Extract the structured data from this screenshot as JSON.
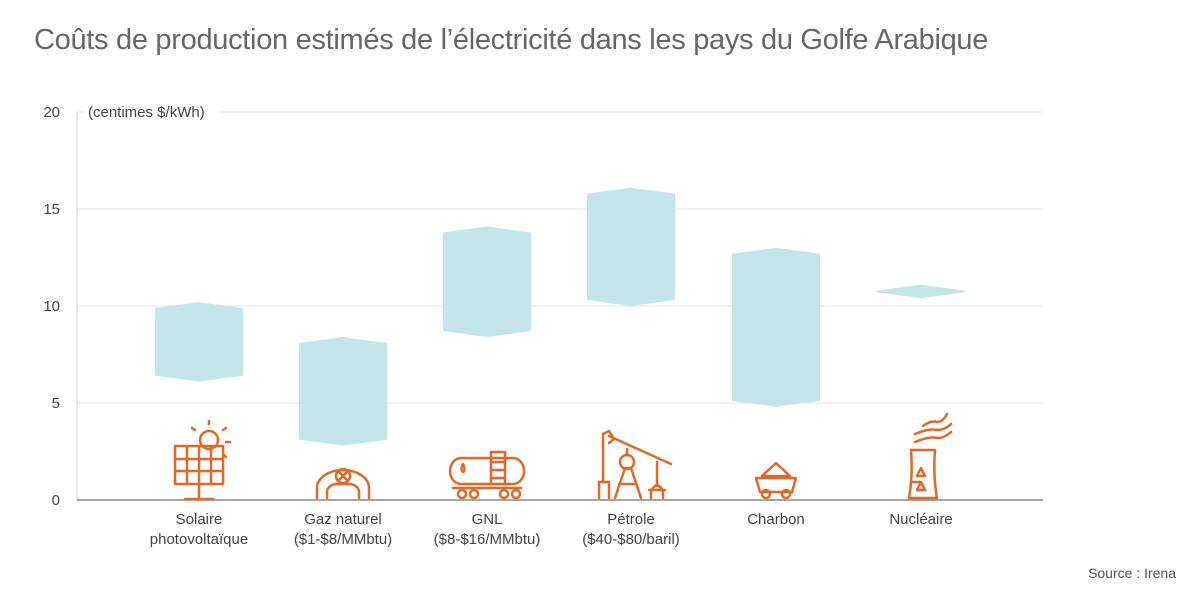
{
  "title": "Coûts de production estimés de l’électricité dans les pays du Golfe Arabique",
  "source": "Source : Irena",
  "colors": {
    "bar": "#c3e5ea",
    "icon": "#e0692a",
    "grid": "#e6e6e6",
    "axis": "#888888"
  },
  "chart_data": {
    "type": "range-bar",
    "title": "Coûts de production estimés de l’électricité dans les pays du Golfe Arabique",
    "ylabel": "(centimes $/kWh)",
    "ylim": [
      0,
      20
    ],
    "yticks": [
      0,
      5,
      10,
      15,
      20
    ],
    "grid": true,
    "categories": [
      {
        "label": [
          "Solaire",
          "photovoltaïque"
        ],
        "icon": "solar-panel-icon",
        "min": 6.1,
        "max": 10.2
      },
      {
        "label": [
          "Gaz naturel",
          "($1-$8/MMbtu)"
        ],
        "icon": "gas-pipeline-icon",
        "min": 2.8,
        "max": 8.4
      },
      {
        "label": [
          "GNL",
          "($8-$16/MMbtu)"
        ],
        "icon": "lng-tanker-icon",
        "min": 8.4,
        "max": 14.1
      },
      {
        "label": [
          "Pétrole",
          "($40-$80/baril)"
        ],
        "icon": "oil-pump-icon",
        "min": 10.0,
        "max": 16.1
      },
      {
        "label": [
          "Charbon"
        ],
        "icon": "coal-cart-icon",
        "min": 4.8,
        "max": 13.0
      },
      {
        "label": [
          "Nucléaire"
        ],
        "icon": "nuclear-plant-icon",
        "min": 10.4,
        "max": 11.1
      }
    ]
  }
}
